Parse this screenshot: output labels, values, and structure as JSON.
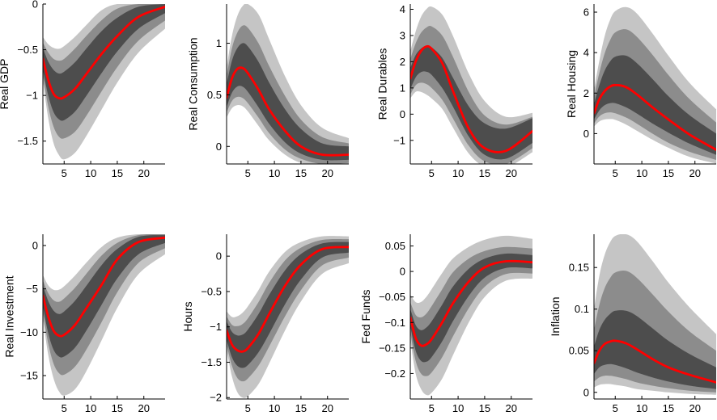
{
  "style": {
    "background": "#ffffff",
    "axis_color": "#000000",
    "median_line_color": "#ff0000",
    "band_colors": {
      "outer": "#c5c5c5",
      "middle": "#8c8c8c",
      "inner": "#4d4d4d"
    },
    "band_order_note": "outer=lightest 90% band, middle=medium gray, inner=dark gray band around red median"
  },
  "chart_data": [
    {
      "type": "line",
      "ylabel": "Real GDP",
      "x": [
        1,
        2,
        3,
        4,
        5,
        7,
        9,
        12,
        15,
        19,
        24
      ],
      "xticks": [
        5,
        10,
        15,
        20
      ],
      "xlim": [
        1,
        24
      ],
      "ylim": [
        -1.75,
        0
      ],
      "ytick_values": [
        0,
        -0.5,
        -1,
        -1.5
      ],
      "ytick_labels": [
        "0",
        "−0.5",
        "−1",
        "−1.5"
      ],
      "median": [
        -0.6,
        -0.83,
        -0.98,
        -1.03,
        -1.02,
        -0.93,
        -0.78,
        -0.55,
        -0.35,
        -0.14,
        -0.03
      ],
      "bands": {
        "inner": {
          "hi": [
            -0.48,
            -0.63,
            -0.72,
            -0.76,
            -0.74,
            -0.64,
            -0.5,
            -0.3,
            -0.15,
            -0.03,
            0.0
          ],
          "lo": [
            -0.72,
            -1.0,
            -1.18,
            -1.26,
            -1.27,
            -1.18,
            -1.02,
            -0.76,
            -0.52,
            -0.27,
            -0.1
          ]
        },
        "middle": {
          "hi": [
            -0.42,
            -0.53,
            -0.6,
            -0.62,
            -0.6,
            -0.49,
            -0.36,
            -0.18,
            -0.05,
            0.0,
            0.0
          ],
          "lo": [
            -0.78,
            -1.12,
            -1.34,
            -1.45,
            -1.47,
            -1.4,
            -1.24,
            -0.96,
            -0.69,
            -0.4,
            -0.18
          ]
        },
        "outer": {
          "hi": [
            -0.36,
            -0.44,
            -0.48,
            -0.49,
            -0.46,
            -0.36,
            -0.24,
            -0.07,
            0.0,
            0.0,
            0.0
          ],
          "lo": [
            -0.84,
            -1.25,
            -1.52,
            -1.65,
            -1.7,
            -1.63,
            -1.46,
            -1.16,
            -0.86,
            -0.53,
            -0.27
          ]
        }
      }
    },
    {
      "type": "line",
      "ylabel": "Real Consumption",
      "x": [
        1,
        2,
        3,
        4,
        5,
        7,
        9,
        12,
        15,
        19,
        24
      ],
      "xticks": [
        5,
        10,
        15,
        20
      ],
      "xlim": [
        1,
        24
      ],
      "ylim": [
        -0.17,
        1.38
      ],
      "ytick_values": [
        1,
        0.5,
        0
      ],
      "ytick_labels": [
        "1",
        "0.5",
        "0"
      ],
      "median": [
        0.47,
        0.66,
        0.75,
        0.76,
        0.71,
        0.55,
        0.36,
        0.15,
        0.0,
        -0.08,
        -0.08
      ],
      "bands": {
        "inner": {
          "hi": [
            0.6,
            0.83,
            0.95,
            1.0,
            0.97,
            0.82,
            0.62,
            0.36,
            0.17,
            0.03,
            0.0
          ],
          "lo": [
            0.38,
            0.52,
            0.58,
            0.58,
            0.53,
            0.38,
            0.22,
            0.04,
            -0.07,
            -0.13,
            -0.13
          ]
        },
        "middle": {
          "hi": [
            0.68,
            0.95,
            1.1,
            1.17,
            1.15,
            1.0,
            0.78,
            0.49,
            0.26,
            0.09,
            0.03
          ],
          "lo": [
            0.33,
            0.44,
            0.48,
            0.47,
            0.42,
            0.28,
            0.13,
            -0.03,
            -0.12,
            -0.17,
            -0.16
          ]
        },
        "outer": {
          "hi": [
            0.76,
            1.07,
            1.26,
            1.36,
            1.38,
            1.28,
            1.04,
            0.68,
            0.4,
            0.18,
            0.08
          ],
          "lo": [
            0.28,
            0.37,
            0.4,
            0.39,
            0.34,
            0.2,
            0.06,
            -0.08,
            -0.16,
            -0.2,
            -0.19
          ]
        }
      }
    },
    {
      "type": "line",
      "ylabel": "Real Durables",
      "x": [
        1,
        2,
        3,
        4,
        5,
        7,
        9,
        12,
        15,
        19,
        24
      ],
      "xticks": [
        5,
        10,
        15,
        20
      ],
      "xlim": [
        1,
        24
      ],
      "ylim": [
        -1.9,
        4.2
      ],
      "ytick_values": [
        4,
        3,
        2,
        1,
        0,
        -1
      ],
      "ytick_labels": [
        "4",
        "3",
        "2",
        "1",
        "0",
        "−1"
      ],
      "median": [
        1.35,
        2.0,
        2.4,
        2.58,
        2.5,
        1.95,
        0.9,
        -0.55,
        -1.3,
        -1.4,
        -0.65
      ],
      "bands": {
        "inner": {
          "hi": [
            1.75,
            2.25,
            2.5,
            2.6,
            2.55,
            2.15,
            1.4,
            0.3,
            -0.35,
            -0.55,
            -0.15
          ],
          "lo": [
            0.95,
            1.4,
            1.6,
            1.62,
            1.5,
            1.0,
            0.3,
            -0.85,
            -1.55,
            -1.7,
            -1.1
          ]
        },
        "middle": {
          "hi": [
            2.1,
            2.7,
            3.1,
            3.3,
            3.35,
            3.0,
            2.2,
            0.85,
            -0.05,
            -0.4,
            -0.1
          ],
          "lo": [
            0.75,
            1.1,
            1.2,
            1.15,
            1.0,
            0.55,
            -0.15,
            -1.2,
            -1.8,
            -1.9,
            -1.3
          ]
        },
        "outer": {
          "hi": [
            2.4,
            3.15,
            3.7,
            4.0,
            4.1,
            3.8,
            3.0,
            1.55,
            0.5,
            -0.1,
            0.05
          ],
          "lo": [
            0.6,
            0.85,
            0.85,
            0.75,
            0.6,
            0.2,
            -0.5,
            -1.5,
            -2.0,
            -2.05,
            -1.45
          ]
        }
      }
    },
    {
      "type": "line",
      "ylabel": "Real Housing",
      "x": [
        1,
        2,
        3,
        4,
        5,
        7,
        9,
        12,
        15,
        19,
        24
      ],
      "xticks": [
        5,
        10,
        15,
        20
      ],
      "xlim": [
        1,
        24
      ],
      "ylim": [
        -1.5,
        6.4
      ],
      "ytick_values": [
        6,
        4,
        2,
        0
      ],
      "ytick_labels": [
        "6",
        "4",
        "2",
        "0"
      ],
      "median": [
        1.0,
        1.7,
        2.1,
        2.32,
        2.4,
        2.3,
        1.95,
        1.3,
        0.7,
        -0.05,
        -0.8
      ],
      "bands": {
        "inner": {
          "hi": [
            1.45,
            2.4,
            3.1,
            3.55,
            3.8,
            3.85,
            3.5,
            2.7,
            1.85,
            0.9,
            0.0
          ],
          "lo": [
            0.7,
            1.15,
            1.4,
            1.5,
            1.5,
            1.3,
            1.0,
            0.5,
            0.05,
            -0.5,
            -1.05
          ]
        },
        "middle": {
          "hi": [
            1.8,
            3.0,
            3.95,
            4.6,
            5.0,
            5.15,
            4.8,
            3.9,
            2.9,
            1.7,
            0.55
          ],
          "lo": [
            0.5,
            0.85,
            1.0,
            1.05,
            1.0,
            0.8,
            0.5,
            0.0,
            -0.45,
            -0.9,
            -1.3
          ]
        },
        "outer": {
          "hi": [
            2.15,
            3.6,
            4.8,
            5.6,
            6.05,
            6.25,
            5.95,
            4.95,
            3.85,
            2.5,
            1.2
          ],
          "lo": [
            0.35,
            0.6,
            0.7,
            0.72,
            0.68,
            0.45,
            0.15,
            -0.3,
            -0.7,
            -1.15,
            -1.48
          ]
        }
      }
    },
    {
      "type": "line",
      "ylabel": "Real Investment",
      "x": [
        1,
        2,
        3,
        4,
        5,
        7,
        9,
        12,
        15,
        19,
        24
      ],
      "xticks": [
        5,
        10,
        15,
        20
      ],
      "xlim": [
        1,
        24
      ],
      "ylim": [
        -17.7,
        1.3
      ],
      "ytick_values": [
        0,
        -5,
        -10,
        -15
      ],
      "ytick_labels": [
        "0",
        "−5",
        "−10",
        "−15"
      ],
      "median": [
        -5.8,
        -8.2,
        -9.8,
        -10.4,
        -10.3,
        -9.2,
        -7.4,
        -4.6,
        -1.6,
        0.4,
        0.9
      ],
      "bands": {
        "inner": {
          "hi": [
            -4.6,
            -6.4,
            -7.5,
            -7.9,
            -7.6,
            -6.4,
            -4.8,
            -2.3,
            -0.4,
            1.0,
            1.2
          ],
          "lo": [
            -7.0,
            -10.1,
            -12.0,
            -12.8,
            -12.8,
            -11.8,
            -10.0,
            -6.9,
            -3.8,
            -1.0,
            0.3
          ]
        },
        "middle": {
          "hi": [
            -4.0,
            -5.5,
            -6.3,
            -6.5,
            -6.1,
            -4.9,
            -3.4,
            -1.2,
            0.3,
            1.2,
            1.3
          ],
          "lo": [
            -7.7,
            -11.3,
            -13.6,
            -14.7,
            -14.9,
            -14.0,
            -12.2,
            -8.9,
            -5.4,
            -2.0,
            -0.3
          ]
        },
        "outer": {
          "hi": [
            -3.4,
            -4.6,
            -5.1,
            -5.1,
            -4.7,
            -3.5,
            -2.1,
            -0.2,
            0.9,
            1.3,
            1.3
          ],
          "lo": [
            -8.4,
            -12.6,
            -15.3,
            -16.8,
            -17.3,
            -16.6,
            -14.7,
            -11.0,
            -7.2,
            -3.3,
            -1.0
          ]
        }
      }
    },
    {
      "type": "line",
      "ylabel": "Hours",
      "x": [
        1,
        2,
        3,
        4,
        5,
        7,
        9,
        12,
        15,
        19,
        24
      ],
      "xticks": [
        5,
        10,
        15,
        20
      ],
      "xlim": [
        1,
        24
      ],
      "ylim": [
        -2.02,
        0.31
      ],
      "ytick_values": [
        0,
        -0.5,
        -1,
        -1.5,
        -2
      ],
      "ytick_labels": [
        "0",
        "−0.5",
        "−1",
        "−1.5",
        "−2"
      ],
      "median": [
        -1.05,
        -1.25,
        -1.33,
        -1.35,
        -1.3,
        -1.1,
        -0.82,
        -0.42,
        -0.12,
        0.1,
        0.13
      ],
      "bands": {
        "inner": {
          "hi": [
            -0.92,
            -1.07,
            -1.12,
            -1.11,
            -1.04,
            -0.82,
            -0.55,
            -0.2,
            0.03,
            0.18,
            0.2
          ],
          "lo": [
            -1.18,
            -1.43,
            -1.55,
            -1.58,
            -1.54,
            -1.36,
            -1.1,
            -0.68,
            -0.33,
            -0.02,
            0.05
          ]
        },
        "middle": {
          "hi": [
            -0.85,
            -0.97,
            -0.99,
            -0.96,
            -0.88,
            -0.65,
            -0.38,
            -0.06,
            0.12,
            0.23,
            0.24
          ],
          "lo": [
            -1.25,
            -1.55,
            -1.72,
            -1.77,
            -1.73,
            -1.55,
            -1.28,
            -0.85,
            -0.48,
            -0.13,
            -0.02
          ]
        },
        "outer": {
          "hi": [
            -0.78,
            -0.86,
            -0.85,
            -0.8,
            -0.71,
            -0.48,
            -0.22,
            0.06,
            0.2,
            0.28,
            0.28
          ],
          "lo": [
            -1.32,
            -1.7,
            -1.92,
            -2.0,
            -1.98,
            -1.81,
            -1.52,
            -1.05,
            -0.64,
            -0.25,
            -0.1
          ]
        }
      }
    },
    {
      "type": "line",
      "ylabel": "Fed Funds",
      "x": [
        1,
        2,
        3,
        4,
        5,
        7,
        9,
        12,
        15,
        19,
        24
      ],
      "xticks": [
        5,
        10,
        15,
        20
      ],
      "xlim": [
        1,
        24
      ],
      "ylim": [
        -0.25,
        0.073
      ],
      "ytick_values": [
        0.05,
        0,
        -0.05,
        -0.1,
        -0.15,
        -0.2
      ],
      "ytick_labels": [
        "0.05",
        "0",
        "−0.05",
        "−0.1",
        "−0.15",
        "−0.2"
      ],
      "median": [
        -0.09,
        -0.13,
        -0.145,
        -0.143,
        -0.133,
        -0.1,
        -0.063,
        -0.02,
        0.008,
        0.02,
        0.018
      ],
      "bands": {
        "inner": {
          "hi": [
            -0.073,
            -0.105,
            -0.115,
            -0.11,
            -0.098,
            -0.065,
            -0.03,
            0.005,
            0.025,
            0.035,
            0.032
          ],
          "lo": [
            -0.107,
            -0.155,
            -0.175,
            -0.177,
            -0.168,
            -0.137,
            -0.098,
            -0.048,
            -0.012,
            0.007,
            0.006
          ]
        },
        "middle": {
          "hi": [
            -0.06,
            -0.085,
            -0.09,
            -0.083,
            -0.068,
            -0.035,
            -0.002,
            0.025,
            0.04,
            0.048,
            0.045
          ],
          "lo": [
            -0.12,
            -0.175,
            -0.2,
            -0.205,
            -0.198,
            -0.168,
            -0.128,
            -0.072,
            -0.03,
            -0.005,
            -0.004
          ]
        },
        "outer": {
          "hi": [
            -0.045,
            -0.06,
            -0.06,
            -0.05,
            -0.035,
            -0.003,
            0.025,
            0.048,
            0.062,
            0.07,
            0.064
          ],
          "lo": [
            -0.133,
            -0.2,
            -0.23,
            -0.242,
            -0.238,
            -0.21,
            -0.165,
            -0.1,
            -0.05,
            -0.018,
            -0.014
          ]
        }
      }
    },
    {
      "type": "line",
      "ylabel": "Inflation",
      "x": [
        1,
        2,
        3,
        4,
        5,
        7,
        9,
        12,
        15,
        19,
        24
      ],
      "xticks": [
        5,
        10,
        15,
        20
      ],
      "xlim": [
        1,
        24
      ],
      "ylim": [
        -0.008,
        0.19
      ],
      "ytick_values": [
        0.15,
        0.1,
        0.05,
        0
      ],
      "ytick_labels": [
        "0.15",
        "0.1",
        "0.05",
        "0"
      ],
      "median": [
        0.035,
        0.05,
        0.058,
        0.061,
        0.062,
        0.059,
        0.052,
        0.04,
        0.03,
        0.021,
        0.012
      ],
      "bands": {
        "inner": {
          "hi": [
            0.055,
            0.075,
            0.087,
            0.094,
            0.098,
            0.098,
            0.092,
            0.077,
            0.062,
            0.046,
            0.03
          ],
          "lo": [
            0.022,
            0.03,
            0.033,
            0.034,
            0.033,
            0.029,
            0.024,
            0.018,
            0.013,
            0.008,
            0.004
          ]
        },
        "middle": {
          "hi": [
            0.075,
            0.105,
            0.125,
            0.137,
            0.144,
            0.146,
            0.138,
            0.118,
            0.097,
            0.073,
            0.05
          ],
          "lo": [
            0.013,
            0.018,
            0.02,
            0.02,
            0.019,
            0.016,
            0.012,
            0.008,
            0.005,
            0.002,
            0.0
          ]
        },
        "outer": {
          "hi": [
            0.1,
            0.14,
            0.165,
            0.18,
            0.188,
            0.19,
            0.182,
            0.158,
            0.132,
            0.102,
            0.07
          ],
          "lo": [
            0.006,
            0.009,
            0.01,
            0.01,
            0.009,
            0.007,
            0.004,
            0.002,
            0.0,
            -0.002,
            -0.003
          ]
        }
      }
    }
  ]
}
